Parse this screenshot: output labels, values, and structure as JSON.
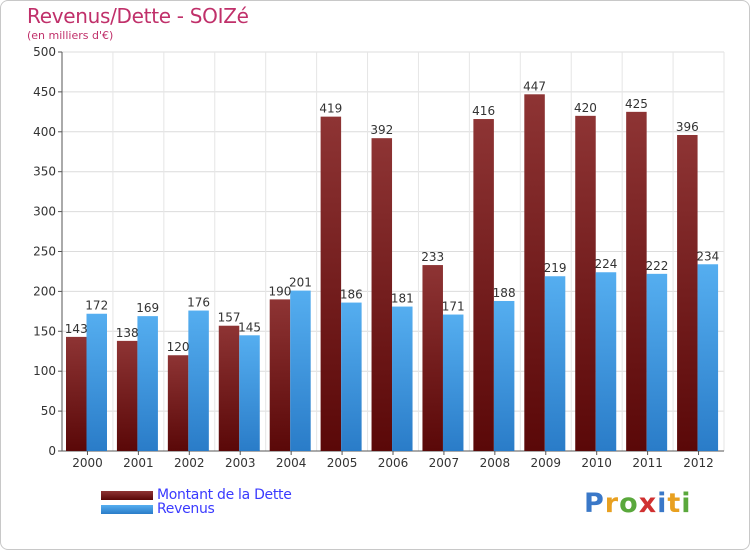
{
  "title": "Revenus/Dette - SOIZé",
  "subtitle": "(en milliers d'€)",
  "logo": {
    "text": "Proxiti",
    "letter_colors": [
      "#3a78c8",
      "#e8a020",
      "#5aa83c",
      "#d03030",
      "#3a78c8",
      "#e8a020",
      "#5aa83c"
    ]
  },
  "chart_data": {
    "type": "bar",
    "title": "Revenus/Dette - SOIZé",
    "subtitle": "(en milliers d'€)",
    "categories": [
      "2000",
      "2001",
      "2002",
      "2003",
      "2004",
      "2005",
      "2006",
      "2007",
      "2008",
      "2009",
      "2010",
      "2011",
      "2012"
    ],
    "series": [
      {
        "name": "Montant de la Dette",
        "color": "#7a1a1a",
        "values": [
          143,
          138,
          120,
          157,
          190,
          419,
          392,
          233,
          416,
          447,
          420,
          425,
          396
        ]
      },
      {
        "name": "Revenus",
        "color": "#3a95dd",
        "values": [
          172,
          169,
          176,
          145,
          201,
          186,
          181,
          171,
          188,
          219,
          224,
          222,
          234
        ]
      }
    ],
    "ylim": [
      0,
      500
    ],
    "yticks": [
      0,
      50,
      100,
      150,
      200,
      250,
      300,
      350,
      400,
      450,
      500
    ],
    "grid": true,
    "legend_position": "bottom-left"
  }
}
